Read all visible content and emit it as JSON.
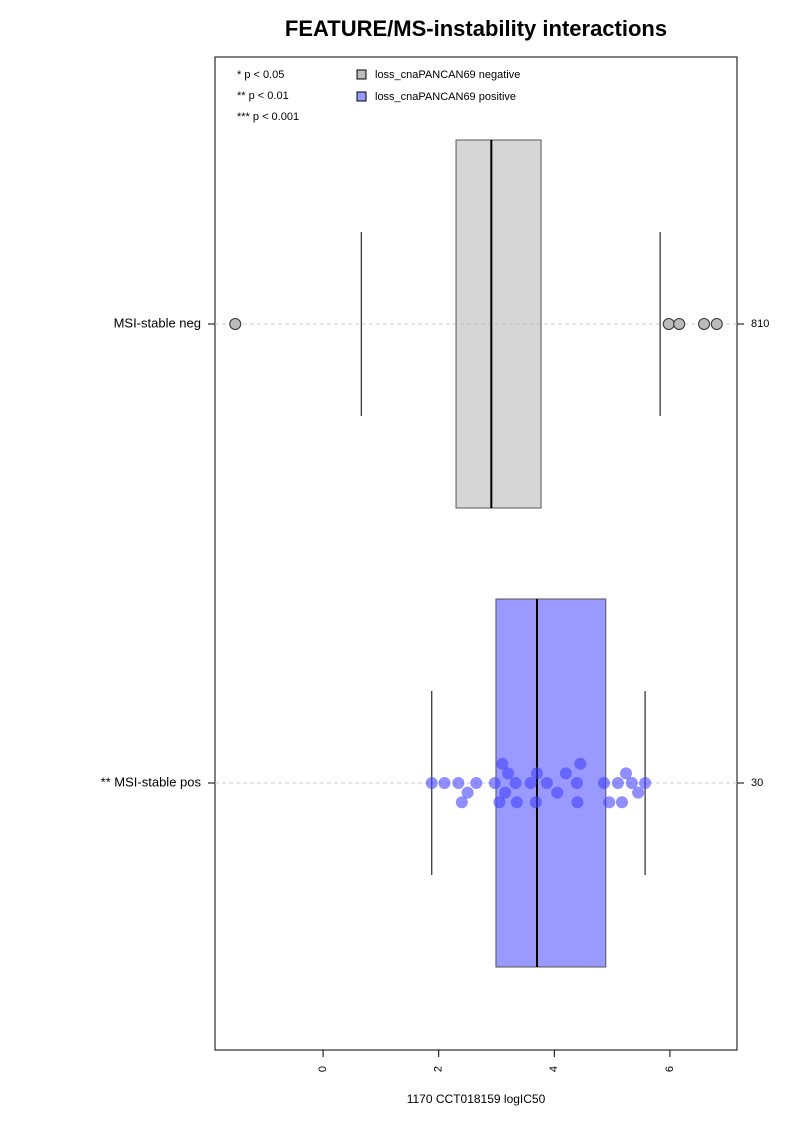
{
  "chart_data": {
    "type": "boxplot",
    "title": "FEATURE/MS-instability interactions",
    "xlabel": "1170 CCT018159 logIC50",
    "xlim": [
      -1.87,
      7.16
    ],
    "xticks": [
      0,
      2,
      4,
      6
    ],
    "categories": [
      "MSI-stable neg",
      "** MSI-stable pos"
    ],
    "counts": [
      810,
      30
    ],
    "annotations": [
      "* p < 0.05",
      "** p < 0.01",
      "*** p < 0.001"
    ],
    "series": [
      {
        "name": "loss_cnaPANCAN69 negative",
        "color": "#bbbbbb",
        "whisker_low": 0.66,
        "q1": 2.3,
        "median": 2.91,
        "q3": 3.77,
        "whisker_high": 5.83,
        "outliers": [
          -1.52,
          5.98,
          6.16,
          6.59,
          6.81
        ],
        "points": []
      },
      {
        "name": "loss_cnaPANCAN69 positive",
        "color": "#9999ff",
        "whisker_low": 1.88,
        "q1": 2.99,
        "median": 3.7,
        "q3": 4.89,
        "whisker_high": 5.57,
        "outliers": [],
        "points": [
          1.88,
          2.1,
          2.34,
          2.5,
          2.65,
          2.97,
          3.15,
          3.33,
          3.35,
          3.59,
          3.68,
          3.7,
          3.87,
          4.05,
          4.39,
          4.4,
          4.45,
          4.86,
          4.95,
          5.1,
          5.17,
          5.24,
          5.34,
          5.45,
          5.57,
          3.2,
          3.05,
          4.2,
          3.1,
          2.4
        ]
      }
    ]
  }
}
